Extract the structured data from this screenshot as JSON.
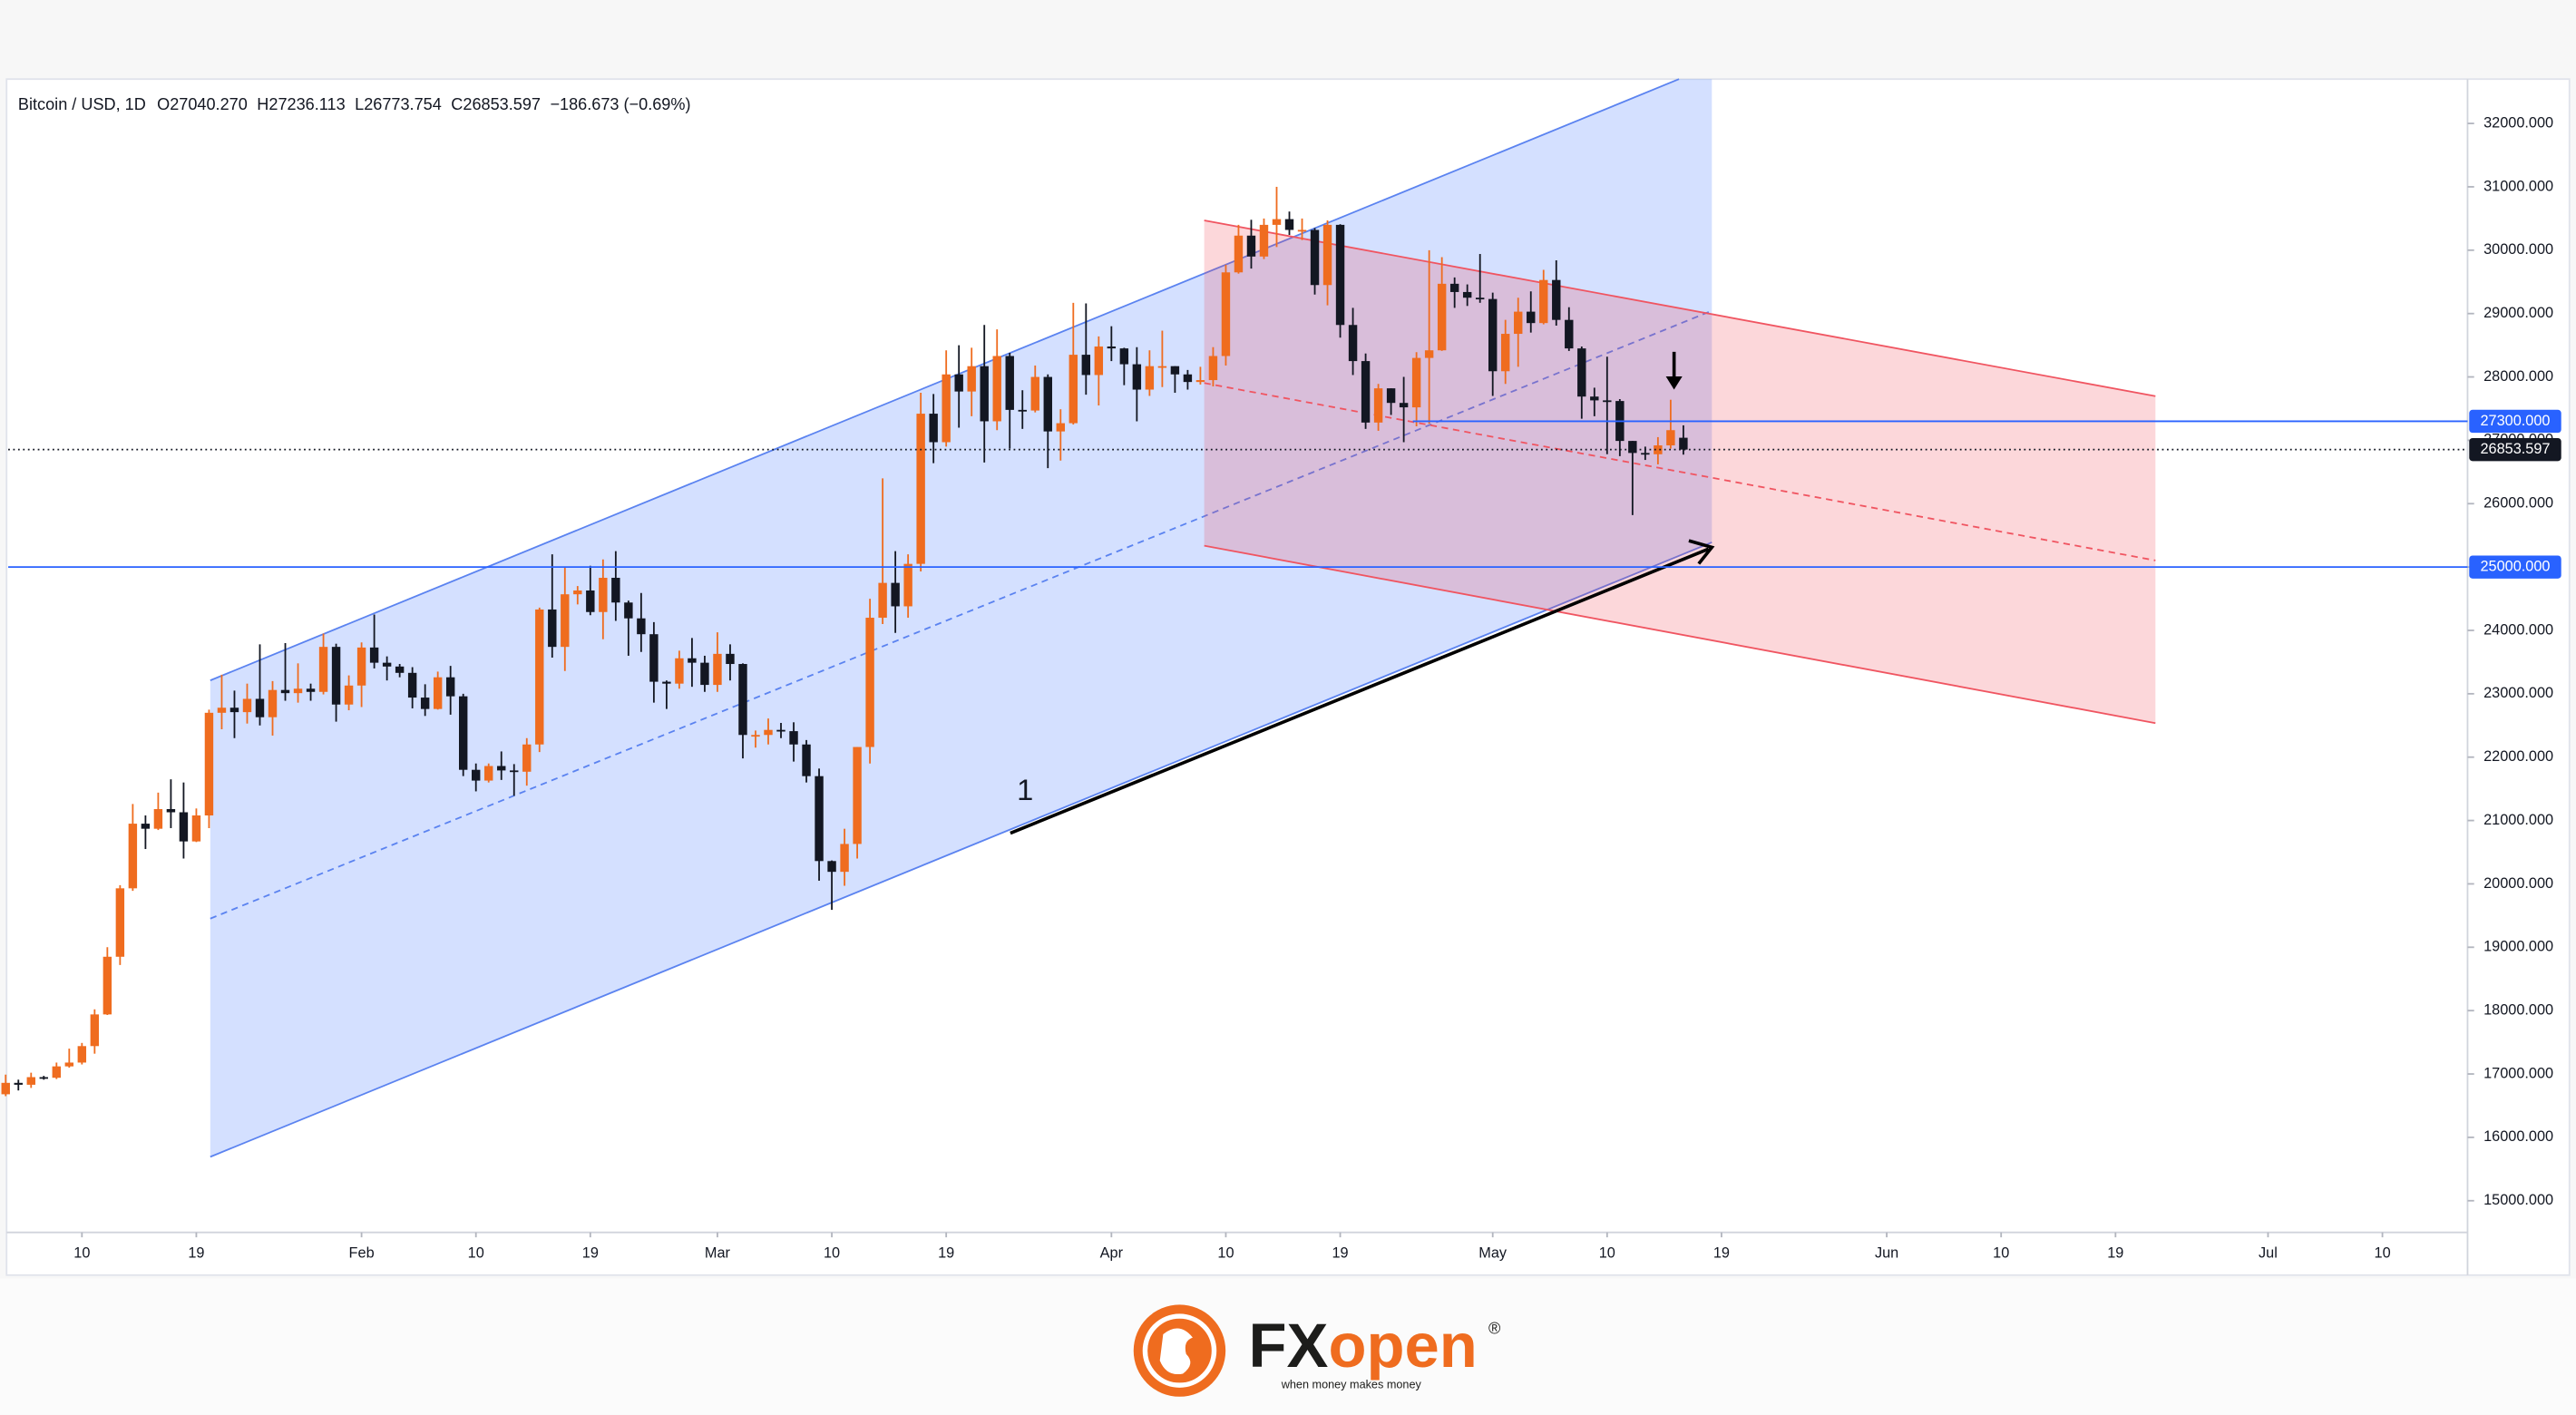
{
  "chart_data": {
    "type": "candlestick",
    "header": {
      "symbol": "Bitcoin / USD, 1D",
      "open": "O27040.270",
      "high": "H27236.113",
      "low": "L26773.754",
      "close": "C26853.597",
      "change": "−186.673 (−0.69%)"
    },
    "up_color": "#ef6c1f",
    "down_color": "#131722",
    "series": [
      {
        "open": [
          16680,
          16860,
          16830,
          16950,
          16940,
          17120,
          17180,
          17440,
          17940,
          18850,
          19930,
          20950,
          20870,
          21180,
          21130,
          20670,
          21080,
          22700,
          22780,
          22710,
          22920,
          22630,
          23060,
          23010,
          23080,
          23030,
          23740,
          22830,
          23130,
          23730,
          23490,
          23430,
          23330,
          22940,
          22760,
          23260,
          22960,
          21800,
          21630,
          21860,
          21790,
          21770,
          22200,
          24330,
          23740,
          24570,
          24630,
          24290,
          24830,
          24440,
          24190,
          23940,
          23190,
          23160,
          23560,
          23490,
          23140,
          23630,
          23470,
          22350,
          22350,
          22430,
          22410,
          22200,
          21700,
          20360,
          20190,
          20630,
          22160,
          24200,
          24750,
          24380,
          25050,
          27420,
          26970,
          28040,
          27770,
          28170,
          27300,
          28330,
          27480,
          27470,
          28000,
          27140,
          27270,
          28350,
          28030,
          28480,
          28450,
          28200,
          27800,
          28170,
          28170,
          28040,
          27920,
          27950,
          28330,
          29650,
          30230,
          29900,
          30400,
          30490,
          30320,
          30320,
          29450,
          30400,
          28820,
          28250,
          27280,
          27820,
          27590,
          27520,
          28300,
          28420,
          29470,
          29340,
          29250,
          29230,
          28090,
          28680,
          29030,
          28850,
          29530,
          28900,
          28450,
          27690,
          27630,
          27620,
          26990,
          26800,
          26780,
          26920,
          27040.27
        ],
        "high": [
          16990,
          16910,
          17020,
          16970,
          17180,
          17400,
          17490,
          18020,
          19000,
          19980,
          21260,
          21080,
          21440,
          21650,
          21600,
          21190,
          22750,
          23300,
          23050,
          23160,
          23780,
          23200,
          23800,
          23480,
          23160,
          23950,
          23790,
          23290,
          23810,
          24250,
          23590,
          23470,
          23420,
          23150,
          23350,
          23440,
          23000,
          21900,
          21900,
          22090,
          21890,
          22300,
          24360,
          25200,
          24990,
          24700,
          25020,
          25120,
          25250,
          24470,
          24590,
          24130,
          23210,
          23680,
          23880,
          23600,
          23970,
          23780,
          23480,
          22420,
          22610,
          22540,
          22550,
          22270,
          21820,
          20370,
          20870,
          22160,
          24500,
          26400,
          25250,
          25200,
          27750,
          27730,
          28420,
          28500,
          28460,
          28820,
          28750,
          28380,
          27790,
          28180,
          28040,
          27490,
          29170,
          29160,
          28640,
          28800,
          28460,
          28470,
          28420,
          28730,
          28170,
          28110,
          28160,
          28470,
          29770,
          30400,
          30480,
          30500,
          31000,
          30610,
          30500,
          30350,
          30470,
          30410,
          29090,
          28370,
          27890,
          27820,
          28000,
          28390,
          30000,
          29890,
          29570,
          29460,
          29940,
          29330,
          28900,
          29250,
          29350,
          29690,
          29840,
          29100,
          28480,
          27830,
          28320,
          27650,
          26990,
          26900,
          27050,
          27640,
          27236.113
        ],
        "low": [
          16650,
          16740,
          16780,
          16910,
          16920,
          17100,
          17150,
          17320,
          17930,
          18720,
          19890,
          20550,
          20850,
          20880,
          20400,
          20660,
          20880,
          22440,
          22300,
          22530,
          22500,
          22340,
          22890,
          22860,
          22890,
          22990,
          22560,
          22740,
          22790,
          23400,
          23210,
          23260,
          22770,
          22650,
          22750,
          22670,
          21700,
          21460,
          21600,
          21640,
          21390,
          21550,
          22080,
          23570,
          23360,
          24410,
          24240,
          23860,
          24150,
          23600,
          23660,
          22860,
          22760,
          23080,
          23110,
          23030,
          23030,
          23210,
          21980,
          22150,
          22200,
          22300,
          21930,
          21600,
          20050,
          19590,
          19970,
          20400,
          21900,
          24100,
          23960,
          24200,
          24930,
          26640,
          26900,
          27200,
          27380,
          26650,
          27160,
          26870,
          27180,
          27440,
          26560,
          26680,
          27250,
          27720,
          27550,
          28250,
          27870,
          27300,
          27700,
          27840,
          27750,
          27800,
          27880,
          27850,
          28180,
          29630,
          29710,
          29860,
          30050,
          30240,
          30160,
          29300,
          29130,
          28620,
          28030,
          27180,
          27150,
          27400,
          26970,
          27220,
          27260,
          28410,
          29090,
          29120,
          29170,
          27700,
          27890,
          28160,
          28700,
          28830,
          28810,
          28410,
          27340,
          27380,
          26780,
          26750,
          25820,
          26690,
          26620,
          26870,
          26773.754
        ],
        "close": [
          16860,
          16830,
          16950,
          16940,
          17120,
          17180,
          17440,
          17940,
          18850,
          19930,
          20950,
          20870,
          21180,
          21130,
          20670,
          21080,
          22700,
          22780,
          22710,
          22920,
          22630,
          23060,
          23010,
          23080,
          23030,
          23740,
          22830,
          23130,
          23730,
          23490,
          23430,
          23330,
          22940,
          22760,
          23260,
          22960,
          21800,
          21630,
          21860,
          21790,
          21770,
          22200,
          24330,
          23740,
          24570,
          24630,
          24290,
          24830,
          24440,
          24190,
          23940,
          23190,
          23160,
          23560,
          23490,
          23140,
          23630,
          23470,
          22350,
          22350,
          22430,
          22410,
          22200,
          21700,
          20360,
          20190,
          20630,
          22160,
          24200,
          24750,
          24380,
          25050,
          27420,
          26970,
          28040,
          27770,
          28170,
          27300,
          28330,
          27480,
          27470,
          28000,
          27140,
          27270,
          28350,
          28030,
          28480,
          28450,
          28200,
          27800,
          28170,
          28170,
          28040,
          27920,
          27950,
          28330,
          29650,
          30230,
          29900,
          30400,
          30490,
          30320,
          30320,
          29450,
          30400,
          28820,
          28250,
          27280,
          27820,
          27590,
          27520,
          28300,
          28420,
          29470,
          29340,
          29250,
          29230,
          28090,
          28680,
          29030,
          28850,
          29530,
          28900,
          28450,
          27690,
          27630,
          27620,
          26990,
          26800,
          26780,
          26920,
          27160,
          26853.597
        ]
      }
    ],
    "xlim": [
      0.2,
      193.7
    ],
    "xticks": [
      {
        "value": 6,
        "label": "10"
      },
      {
        "value": 15,
        "label": "19"
      },
      {
        "value": 28,
        "label": "Feb"
      },
      {
        "value": 37,
        "label": "10"
      },
      {
        "value": 46,
        "label": "19"
      },
      {
        "value": 56,
        "label": "Mar"
      },
      {
        "value": 65,
        "label": "10"
      },
      {
        "value": 74,
        "label": "19"
      },
      {
        "value": 87,
        "label": "Apr"
      },
      {
        "value": 96,
        "label": "10"
      },
      {
        "value": 105,
        "label": "19"
      },
      {
        "value": 117,
        "label": "May"
      },
      {
        "value": 126,
        "label": "10"
      },
      {
        "value": 135,
        "label": "19"
      },
      {
        "value": 148,
        "label": "Jun"
      },
      {
        "value": 157,
        "label": "10"
      },
      {
        "value": 166,
        "label": "19"
      },
      {
        "value": 178,
        "label": "Jul"
      },
      {
        "value": 187,
        "label": "10"
      }
    ],
    "ylim": [
      14500,
      32700
    ],
    "yticks": [
      {
        "value": 15000,
        "label": "15000.000"
      },
      {
        "value": 16000,
        "label": "16000.000"
      },
      {
        "value": 17000,
        "label": "17000.000"
      },
      {
        "value": 18000,
        "label": "18000.000"
      },
      {
        "value": 19000,
        "label": "19000.000"
      },
      {
        "value": 20000,
        "label": "20000.000"
      },
      {
        "value": 21000,
        "label": "21000.000"
      },
      {
        "value": 22000,
        "label": "22000.000"
      },
      {
        "value": 23000,
        "label": "23000.000"
      },
      {
        "value": 24000,
        "label": "24000.000"
      },
      {
        "value": 25000,
        "label": "25000.000"
      },
      {
        "value": 26000,
        "label": "26000.000"
      },
      {
        "value": 27000,
        "label": "27000.000"
      },
      {
        "value": 28000,
        "label": "28000.000"
      },
      {
        "value": 29000,
        "label": "29000.000"
      },
      {
        "value": 30000,
        "label": "30000.000"
      },
      {
        "value": 31000,
        "label": "31000.000"
      },
      {
        "value": 32000,
        "label": "32000.000"
      }
    ],
    "hlines": [
      {
        "value": 27300,
        "label": "27300.000",
        "color": "#2962ff"
      },
      {
        "value": 25000,
        "label": "25000.000",
        "color": "#2962ff"
      }
    ],
    "last_price": {
      "value": 26853.597,
      "label": "26853.597"
    },
    "annotation": "1"
  },
  "logo": {
    "brand_fx": "FX",
    "brand_open": "open",
    "registered": "®",
    "tagline": "when money makes money"
  }
}
